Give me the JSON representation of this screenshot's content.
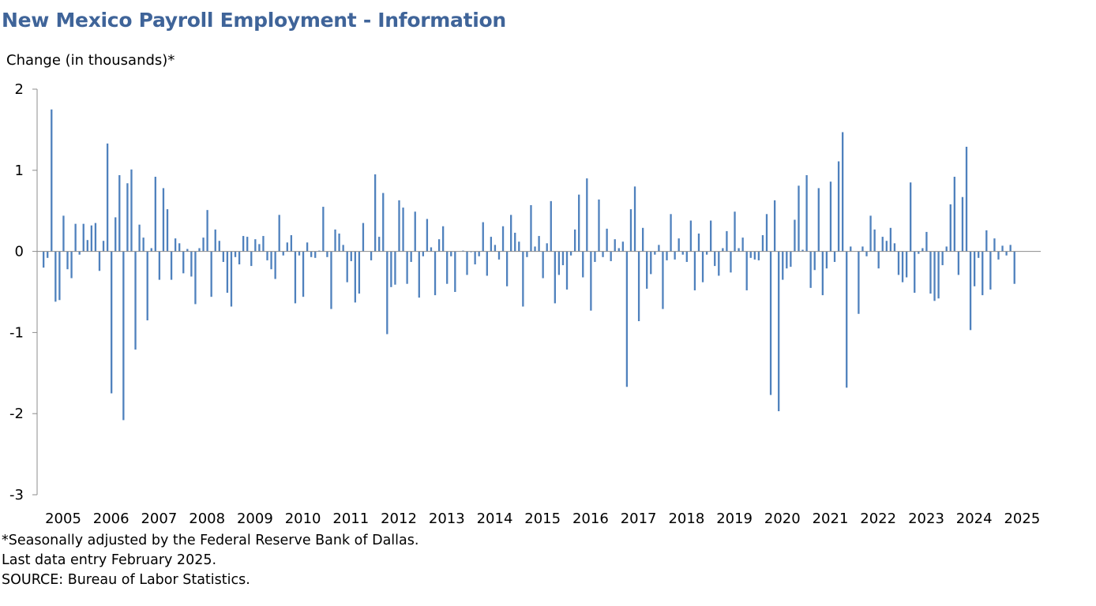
{
  "chart_data": {
    "type": "bar",
    "title": "New Mexico Payroll Employment - Information",
    "ylabel": "Change (in thousands)*",
    "xlabel": "",
    "ylim": [
      -3,
      2
    ],
    "yticks": [
      "-3",
      "-2",
      "-1",
      "0",
      "1",
      "2"
    ],
    "xtick_labels": [
      "2005",
      "2006",
      "2007",
      "2008",
      "2009",
      "2010",
      "2011",
      "2012",
      "2013",
      "2014",
      "2015",
      "2016",
      "2017",
      "2018",
      "2019",
      "2020",
      "2021",
      "2022",
      "2023",
      "2024",
      "2025"
    ],
    "bar_color": "#4f81bd",
    "grid": false,
    "legend": "none",
    "start": "2005-01",
    "end": "2025-02",
    "frequency": "monthly",
    "values": [
      -0.2,
      -0.08,
      1.75,
      -0.62,
      -0.6,
      0.44,
      -0.22,
      -0.33,
      0.34,
      -0.04,
      0.34,
      0.14,
      0.32,
      0.35,
      -0.24,
      0.13,
      1.33,
      -1.75,
      0.42,
      0.94,
      -2.08,
      0.84,
      1.01,
      -1.21,
      0.33,
      0.17,
      -0.85,
      0.04,
      0.92,
      -0.35,
      0.78,
      0.52,
      -0.35,
      0.16,
      0.1,
      -0.27,
      0.03,
      -0.31,
      -0.65,
      0.04,
      0.17,
      0.51,
      -0.56,
      0.27,
      0.13,
      -0.13,
      -0.51,
      -0.68,
      -0.07,
      -0.16,
      0.19,
      0.18,
      -0.18,
      0.15,
      0.09,
      0.19,
      -0.11,
      -0.22,
      -0.34,
      0.45,
      -0.05,
      0.11,
      0.2,
      -0.64,
      -0.05,
      -0.56,
      0.11,
      -0.07,
      -0.08,
      0.01,
      0.55,
      -0.07,
      -0.71,
      0.27,
      0.22,
      0.08,
      -0.38,
      -0.12,
      -0.63,
      -0.52,
      0.35,
      0.0,
      -0.11,
      0.95,
      0.18,
      0.72,
      -1.02,
      -0.44,
      -0.41,
      0.63,
      0.54,
      -0.4,
      -0.13,
      0.49,
      -0.57,
      -0.06,
      0.4,
      0.05,
      -0.54,
      0.15,
      0.31,
      -0.4,
      -0.06,
      -0.5,
      0.0,
      0.01,
      -0.29,
      -0.01,
      -0.16,
      -0.06,
      0.36,
      -0.3,
      0.18,
      0.08,
      -0.1,
      0.31,
      -0.43,
      0.45,
      0.23,
      0.12,
      -0.68,
      -0.07,
      0.57,
      0.06,
      0.19,
      -0.33,
      0.1,
      0.62,
      -0.64,
      -0.29,
      -0.17,
      -0.47,
      -0.05,
      0.27,
      0.7,
      -0.32,
      0.9,
      -0.73,
      -0.13,
      0.64,
      -0.07,
      0.28,
      -0.12,
      0.15,
      0.04,
      0.12,
      -1.67,
      0.52,
      0.8,
      -0.86,
      0.29,
      -0.46,
      -0.28,
      -0.04,
      0.08,
      -0.71,
      -0.11,
      0.46,
      -0.1,
      0.16,
      -0.04,
      -0.13,
      0.38,
      -0.48,
      0.22,
      -0.38,
      -0.04,
      0.38,
      -0.18,
      -0.3,
      0.04,
      0.25,
      -0.26,
      0.49,
      0.04,
      0.17,
      -0.48,
      -0.08,
      -0.1,
      -0.11,
      0.2,
      0.46,
      -1.77,
      0.63,
      -1.97,
      -0.35,
      -0.21,
      -0.19,
      0.39,
      0.81,
      0.02,
      0.94,
      -0.45,
      -0.23,
      0.78,
      -0.54,
      -0.21,
      0.86,
      -0.13,
      1.11,
      1.47,
      -1.68,
      0.06,
      0.0,
      -0.77,
      0.06,
      -0.06,
      0.44,
      0.27,
      -0.21,
      0.18,
      0.13,
      0.29,
      0.1,
      -0.29,
      -0.38,
      -0.32,
      0.85,
      -0.51,
      -0.03,
      0.04,
      0.24,
      -0.52,
      -0.61,
      -0.58,
      -0.17,
      0.06,
      0.58,
      0.92,
      -0.29,
      0.67,
      1.29,
      -0.97,
      -0.43,
      -0.08,
      -0.54,
      0.26,
      -0.47,
      0.16,
      -0.1,
      0.07,
      -0.05,
      0.08,
      -0.4
    ]
  },
  "notes": {
    "line1": "*Seasonally adjusted by the Federal Reserve Bank of Dallas.",
    "line2": "Last data entry February 2025.",
    "line3": "SOURCE: Bureau of Labor Statistics."
  }
}
